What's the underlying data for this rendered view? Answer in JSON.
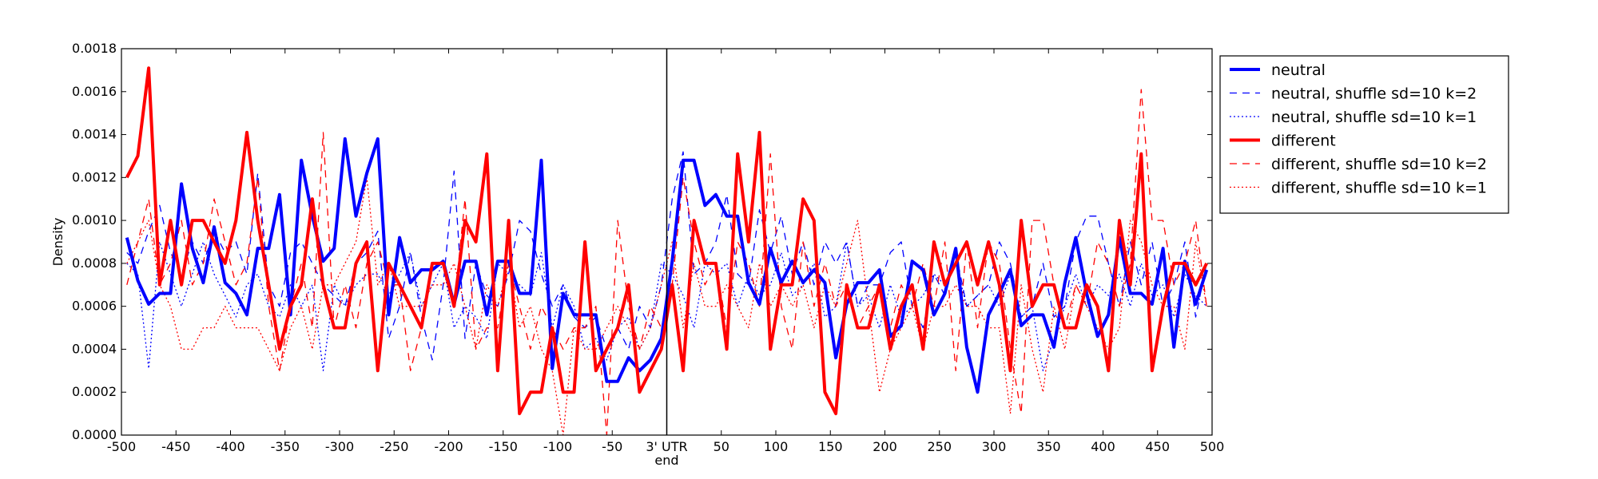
{
  "chart_data": {
    "type": "line",
    "title": "",
    "xlabel": "end",
    "ylabel": "Density",
    "xlim": [
      -500,
      500
    ],
    "ylim": [
      0,
      0.0018
    ],
    "grid": false,
    "legend_position": "outside-right",
    "x_ticks": [
      {
        "value": -500,
        "label": "-500"
      },
      {
        "value": -450,
        "label": "-450"
      },
      {
        "value": -400,
        "label": "-400"
      },
      {
        "value": -350,
        "label": "-350"
      },
      {
        "value": -300,
        "label": "-300"
      },
      {
        "value": -250,
        "label": "-250"
      },
      {
        "value": -200,
        "label": "-200"
      },
      {
        "value": -150,
        "label": "-150"
      },
      {
        "value": -100,
        "label": "-100"
      },
      {
        "value": -50,
        "label": "-50"
      },
      {
        "value": 0,
        "label": "3' UTR"
      },
      {
        "value": 50,
        "label": "50"
      },
      {
        "value": 100,
        "label": "100"
      },
      {
        "value": 150,
        "label": "150"
      },
      {
        "value": 200,
        "label": "200"
      },
      {
        "value": 250,
        "label": "250"
      },
      {
        "value": 300,
        "label": "300"
      },
      {
        "value": 350,
        "label": "350"
      },
      {
        "value": 400,
        "label": "400"
      },
      {
        "value": 450,
        "label": "450"
      },
      {
        "value": 500,
        "label": "500"
      }
    ],
    "y_ticks": [
      {
        "value": 0,
        "label": "0.0000"
      },
      {
        "value": 0.0002,
        "label": "0.0002"
      },
      {
        "value": 0.0004,
        "label": "0.0004"
      },
      {
        "value": 0.0006,
        "label": "0.0006"
      },
      {
        "value": 0.0008,
        "label": "0.0008"
      },
      {
        "value": 0.001,
        "label": "0.0010"
      },
      {
        "value": 0.0012,
        "label": "0.0012"
      },
      {
        "value": 0.0014,
        "label": "0.0014"
      },
      {
        "value": 0.0016,
        "label": "0.0016"
      },
      {
        "value": 0.0018,
        "label": "0.0018"
      }
    ],
    "reference_line_x": 0,
    "x": [
      -495,
      -485,
      -475,
      -465,
      -455,
      -445,
      -435,
      -425,
      -415,
      -405,
      -395,
      -385,
      -375,
      -365,
      -355,
      -345,
      -335,
      -325,
      -315,
      -305,
      -295,
      -285,
      -275,
      -265,
      -255,
      -245,
      -235,
      -225,
      -215,
      -205,
      -195,
      -185,
      -175,
      -165,
      -155,
      -145,
      -135,
      -125,
      -115,
      -105,
      -95,
      -85,
      -75,
      -65,
      -55,
      -45,
      -35,
      -25,
      -15,
      -5,
      5,
      15,
      25,
      35,
      45,
      55,
      65,
      75,
      85,
      95,
      105,
      115,
      125,
      135,
      145,
      155,
      165,
      175,
      185,
      195,
      205,
      215,
      225,
      235,
      245,
      255,
      265,
      275,
      285,
      295,
      305,
      315,
      325,
      335,
      345,
      355,
      365,
      375,
      385,
      395,
      405,
      415,
      425,
      435,
      445,
      455,
      465,
      475,
      485,
      495
    ],
    "series": [
      {
        "name": "neutral",
        "color": "#0000ff",
        "style": "solid",
        "width": 4,
        "values": [
          0.00092,
          0.00072,
          0.00061,
          0.00066,
          0.00066,
          0.00117,
          0.00087,
          0.00071,
          0.00097,
          0.00071,
          0.00066,
          0.00056,
          0.00087,
          0.00087,
          0.00112,
          0.00056,
          0.00128,
          0.00102,
          0.00081,
          0.00087,
          0.00138,
          0.00102,
          0.00122,
          0.00138,
          0.00056,
          0.00092,
          0.00071,
          0.00077,
          0.00077,
          0.00081,
          0.00061,
          0.00081,
          0.00081,
          0.00056,
          0.00081,
          0.00081,
          0.00066,
          0.00066,
          0.00128,
          0.00031,
          0.00066,
          0.00056,
          0.00056,
          0.00056,
          0.00025,
          0.00025,
          0.00036,
          0.0003,
          0.00035,
          0.00045,
          0.00081,
          0.00128,
          0.00128,
          0.00107,
          0.00112,
          0.00102,
          0.00102,
          0.00071,
          0.00061,
          0.00087,
          0.00071,
          0.00081,
          0.00071,
          0.00077,
          0.00071,
          0.00036,
          0.00061,
          0.00071,
          0.00071,
          0.00077,
          0.00046,
          0.00051,
          0.00081,
          0.00077,
          0.00056,
          0.00066,
          0.00087,
          0.00041,
          0.0002,
          0.00056,
          0.00066,
          0.00077,
          0.00051,
          0.00056,
          0.00056,
          0.00041,
          0.00071,
          0.00092,
          0.00066,
          0.00046,
          0.00056,
          0.00092,
          0.00066,
          0.00066,
          0.00061,
          0.00087,
          0.00041,
          0.00081,
          0.00061,
          0.00077
        ]
      },
      {
        "name": "neutral, shuffle sd=10 k=2",
        "color": "#0000ff",
        "style": "dashed",
        "width": 1.3,
        "values": [
          0.00085,
          0.0008,
          0.00095,
          0.00107,
          0.00085,
          0.00075,
          0.0009,
          0.0008,
          0.00095,
          0.00085,
          0.0009,
          0.00075,
          0.00122,
          0.0007,
          0.0006,
          0.00085,
          0.0009,
          0.0008,
          0.0007,
          0.00065,
          0.0006,
          0.0008,
          0.00085,
          0.00095,
          0.00045,
          0.0006,
          0.00085,
          0.00055,
          0.00035,
          0.0007,
          0.00123,
          0.00045,
          0.0008,
          0.00065,
          0.0006,
          0.00075,
          0.001,
          0.00095,
          0.00075,
          0.0006,
          0.0007,
          0.00055,
          0.0005,
          0.00055,
          0.0004,
          0.0005,
          0.0004,
          0.0006,
          0.0005,
          0.0007,
          0.0011,
          0.00132,
          0.00075,
          0.0008,
          0.0009,
          0.00112,
          0.00075,
          0.0007,
          0.00105,
          0.00085,
          0.00102,
          0.00075,
          0.0009,
          0.0007,
          0.0009,
          0.0008,
          0.0009,
          0.0006,
          0.0007,
          0.0007,
          0.00085,
          0.0009,
          0.0006,
          0.0005,
          0.00075,
          0.00065,
          0.00085,
          0.0006,
          0.00065,
          0.0007,
          0.0009,
          0.0008,
          0.00055,
          0.0006,
          0.0008,
          0.00055,
          0.0006,
          0.0009,
          0.00102,
          0.00102,
          0.0008,
          0.0006,
          0.0009,
          0.0007,
          0.0009,
          0.0006,
          0.0007,
          0.0009,
          0.00055,
          0.0008
        ]
      },
      {
        "name": "neutral, shuffle sd=10 k=1",
        "color": "#0000ff",
        "style": "dotted",
        "width": 1.3,
        "values": [
          0.0008,
          0.00075,
          0.00031,
          0.0009,
          0.00075,
          0.0006,
          0.00075,
          0.0009,
          0.00075,
          0.00065,
          0.00055,
          0.0007,
          0.00075,
          0.0006,
          0.00055,
          0.0007,
          0.0006,
          0.0007,
          0.0003,
          0.0007,
          0.0006,
          0.0007,
          0.00075,
          0.00075,
          0.00065,
          0.00075,
          0.00085,
          0.0006,
          0.0007,
          0.0008,
          0.0005,
          0.0006,
          0.00055,
          0.00045,
          0.0008,
          0.00075,
          0.0007,
          0.00065,
          0.00085,
          0.0005,
          0.0007,
          0.0006,
          0.0004,
          0.00045,
          0.00035,
          0.0005,
          0.00055,
          0.0004,
          0.0005,
          0.0008,
          0.00075,
          0.00065,
          0.0005,
          0.0008,
          0.00075,
          0.0008,
          0.0006,
          0.00075,
          0.00065,
          0.0007,
          0.00085,
          0.00065,
          0.0007,
          0.0008,
          0.00055,
          0.0006,
          0.0009,
          0.0006,
          0.00065,
          0.0005,
          0.0007,
          0.00055,
          0.0006,
          0.00065,
          0.00075,
          0.0007,
          0.0008,
          0.0006,
          0.00065,
          0.0007,
          0.0006,
          0.00075,
          0.00055,
          0.0006,
          0.0003,
          0.00045,
          0.0006,
          0.00075,
          0.0006,
          0.0007,
          0.00065,
          0.00075,
          0.0006,
          0.0008,
          0.00065,
          0.0007,
          0.00055,
          0.00075,
          0.00065,
          0.0006
        ]
      },
      {
        "name": "different",
        "color": "#ff0000",
        "style": "solid",
        "width": 4,
        "values": [
          0.0012,
          0.0013,
          0.00171,
          0.0007,
          0.001,
          0.0007,
          0.001,
          0.001,
          0.0009,
          0.0008,
          0.001,
          0.00141,
          0.001,
          0.0007,
          0.0004,
          0.0006,
          0.0007,
          0.0011,
          0.0007,
          0.0005,
          0.0005,
          0.0008,
          0.0009,
          0.0003,
          0.0008,
          0.0007,
          0.0006,
          0.0005,
          0.0008,
          0.0008,
          0.0006,
          0.001,
          0.0009,
          0.00131,
          0.0003,
          0.001,
          0.0001,
          0.0002,
          0.0002,
          0.0005,
          0.0002,
          0.0002,
          0.0009,
          0.0003,
          0.0004,
          0.0005,
          0.0007,
          0.0002,
          0.0003,
          0.0004,
          0.0007,
          0.0003,
          0.001,
          0.0008,
          0.0008,
          0.0004,
          0.00131,
          0.0009,
          0.00141,
          0.0004,
          0.0007,
          0.0007,
          0.0011,
          0.001,
          0.0002,
          0.0001,
          0.0007,
          0.0005,
          0.0005,
          0.0007,
          0.0004,
          0.0006,
          0.0007,
          0.0004,
          0.0009,
          0.0007,
          0.0008,
          0.0009,
          0.0007,
          0.0009,
          0.0007,
          0.0003,
          0.001,
          0.0006,
          0.0007,
          0.0007,
          0.0005,
          0.0005,
          0.0007,
          0.0006,
          0.0003,
          0.001,
          0.0007,
          0.00131,
          0.0003,
          0.0006,
          0.0008,
          0.0008,
          0.0007,
          0.0008
        ]
      },
      {
        "name": "different, shuffle sd=10 k=2",
        "color": "#ff0000",
        "style": "dashed",
        "width": 1.3,
        "values": [
          0.0007,
          0.0009,
          0.0011,
          0.0007,
          0.0008,
          0.001,
          0.0007,
          0.0008,
          0.0011,
          0.0009,
          0.0007,
          0.0008,
          0.0012,
          0.0006,
          0.0003,
          0.0006,
          0.0008,
          0.0005,
          0.00141,
          0.0005,
          0.0007,
          0.0005,
          0.0008,
          0.0009,
          0.0007,
          0.0007,
          0.0003,
          0.0005,
          0.0008,
          0.0008,
          0.0006,
          0.0011,
          0.0004,
          0.0005,
          0.0005,
          0.0008,
          0.0006,
          0.0004,
          0.0006,
          0.0005,
          0.0004,
          0.0005,
          0.0005,
          0.0006,
          0.0,
          0.001,
          0.0006,
          0.0004,
          0.0006,
          0.0005,
          0.0007,
          0.0012,
          0.0009,
          0.0007,
          0.0008,
          0.0005,
          0.0009,
          0.0008,
          0.0006,
          0.00131,
          0.0006,
          0.0004,
          0.0009,
          0.0006,
          0.0008,
          0.0006,
          0.0007,
          0.0005,
          0.0006,
          0.0007,
          0.0005,
          0.0007,
          0.0006,
          0.0008,
          0.0006,
          0.0009,
          0.0003,
          0.0009,
          0.0005,
          0.0009,
          0.0008,
          0.0004,
          0.0001,
          0.001,
          0.001,
          0.0007,
          0.0005,
          0.0007,
          0.0006,
          0.0009,
          0.0008,
          0.0006,
          0.0008,
          0.00161,
          0.001,
          0.001,
          0.0007,
          0.0008,
          0.001,
          0.0006
        ]
      },
      {
        "name": "different, shuffle sd=10 k=1",
        "color": "#ff0000",
        "style": "dotted",
        "width": 1.3,
        "values": [
          0.0008,
          0.0009,
          0.001,
          0.0007,
          0.0006,
          0.0004,
          0.0004,
          0.0005,
          0.0005,
          0.0006,
          0.0005,
          0.0005,
          0.0005,
          0.0004,
          0.0003,
          0.0005,
          0.0006,
          0.0004,
          0.0007,
          0.0007,
          0.0008,
          0.0009,
          0.0012,
          0.0007,
          0.0008,
          0.0006,
          0.0006,
          0.0006,
          0.0007,
          0.0007,
          0.0008,
          0.0006,
          0.0004,
          0.0007,
          0.0006,
          0.0008,
          0.0005,
          0.0006,
          0.0004,
          0.0003,
          0.0,
          0.0005,
          0.0004,
          0.0004,
          0.0005,
          0.0006,
          0.0005,
          0.0004,
          0.0005,
          0.0007,
          0.0009,
          0.0005,
          0.0008,
          0.0006,
          0.0006,
          0.0007,
          0.0006,
          0.0005,
          0.0008,
          0.0006,
          0.0007,
          0.0006,
          0.0007,
          0.0005,
          0.0007,
          0.0006,
          0.0008,
          0.001,
          0.0006,
          0.0002,
          0.0004,
          0.0005,
          0.0006,
          0.0004,
          0.0006,
          0.0006,
          0.0007,
          0.0006,
          0.0006,
          0.0005,
          0.0005,
          0.0001,
          0.0007,
          0.0004,
          0.0002,
          0.0006,
          0.0004,
          0.0007,
          0.0006,
          0.0005,
          0.0004,
          0.0005,
          0.001,
          0.0009,
          0.0007,
          0.0006,
          0.0006,
          0.0004,
          0.0009,
          0.0006
        ]
      }
    ]
  }
}
